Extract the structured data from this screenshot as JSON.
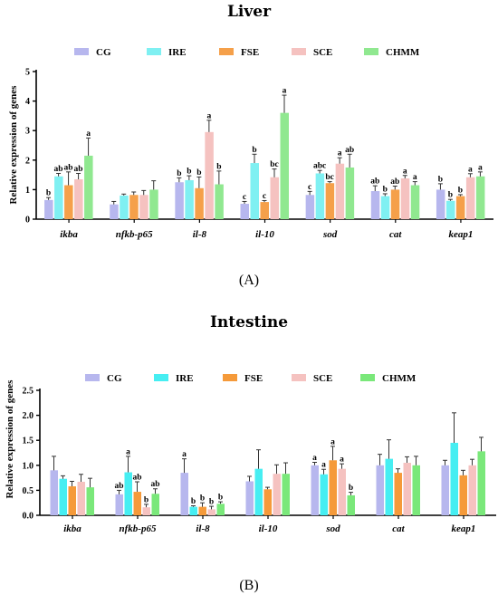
{
  "chart_data": [
    {
      "type": "bar",
      "title": "Liver",
      "panel_label": "(A)",
      "ylabel": "Relative expression of genes",
      "ylim": [
        0,
        5
      ],
      "yticks": [
        "0",
        "1",
        "2",
        "3",
        "4",
        "5"
      ],
      "categories": [
        "ikba",
        "nfkb-p65",
        "il-8",
        "il-10",
        "sod",
        "cat",
        "keap1"
      ],
      "legend_position": "top",
      "series": [
        {
          "name": "CG",
          "color": "#b7b7ee",
          "values": [
            0.65,
            0.5,
            1.25,
            0.52,
            0.82,
            0.95,
            1.0
          ],
          "errors": [
            0.08,
            0.1,
            0.15,
            0.08,
            0.12,
            0.18,
            0.2
          ],
          "labels": [
            "b",
            "",
            "b",
            "c",
            "c",
            "ab",
            "b"
          ]
        },
        {
          "name": "IRE",
          "color": "#7ff0f2",
          "values": [
            1.45,
            0.8,
            1.32,
            1.9,
            1.55,
            0.78,
            0.62
          ],
          "errors": [
            0.1,
            0.05,
            0.15,
            0.3,
            0.1,
            0.08,
            0.05
          ],
          "labels": [
            "ab",
            "",
            "b",
            "b",
            "abc",
            "b",
            "b"
          ]
        },
        {
          "name": "FSE",
          "color": "#f5a04a",
          "values": [
            1.15,
            0.82,
            1.05,
            0.58,
            1.22,
            1.0,
            0.78
          ],
          "errors": [
            0.45,
            0.1,
            0.38,
            0.05,
            0.05,
            0.12,
            0.05
          ],
          "labels": [
            "ab",
            "",
            "b",
            "c",
            "bc",
            "ab",
            "b"
          ]
        },
        {
          "name": "SCE",
          "color": "#f5c2c0",
          "values": [
            1.35,
            0.82,
            2.95,
            1.42,
            1.88,
            1.38,
            1.42
          ],
          "errors": [
            0.2,
            0.15,
            0.4,
            0.28,
            0.2,
            0.1,
            0.12
          ],
          "labels": [
            "ab",
            "",
            "a",
            "bc",
            "a",
            "a",
            "a"
          ]
        },
        {
          "name": "CHMM",
          "color": "#90e890",
          "values": [
            2.15,
            1.0,
            1.18,
            3.6,
            1.75,
            1.15,
            1.45
          ],
          "errors": [
            0.6,
            0.3,
            0.45,
            0.6,
            0.45,
            0.12,
            0.15
          ],
          "labels": [
            "a",
            "",
            "b",
            "a",
            "ab",
            "a",
            "a"
          ]
        }
      ]
    },
    {
      "type": "bar",
      "title": "Intestine",
      "panel_label": "(B)",
      "ylabel": "Relative expression of genes",
      "ylim": [
        0,
        2.5
      ],
      "yticks": [
        "0.0",
        "0.5",
        "1.0",
        "1.5",
        "2.0",
        "2.5"
      ],
      "categories": [
        "ikba",
        "nfkb-p65",
        "il-8",
        "il-10",
        "sod",
        "cat",
        "keap1"
      ],
      "legend_position": "top",
      "series": [
        {
          "name": "CG",
          "color": "#b7b7ee",
          "values": [
            0.9,
            0.42,
            0.85,
            0.68,
            1.0,
            1.0,
            1.0
          ],
          "errors": [
            0.28,
            0.08,
            0.28,
            0.1,
            0.06,
            0.22,
            0.1
          ],
          "labels": [
            "",
            "ab",
            "a",
            "",
            "a",
            "",
            ""
          ]
        },
        {
          "name": "IRE",
          "color": "#46eef2",
          "values": [
            0.73,
            0.86,
            0.17,
            0.93,
            0.82,
            1.13,
            1.45
          ],
          "errors": [
            0.06,
            0.32,
            0.02,
            0.38,
            0.1,
            0.38,
            0.6
          ],
          "labels": [
            "",
            "a",
            "b",
            "",
            "a",
            "",
            ""
          ]
        },
        {
          "name": "FSE",
          "color": "#f59a3a",
          "values": [
            0.58,
            0.47,
            0.17,
            0.52,
            1.1,
            0.85,
            0.8
          ],
          "errors": [
            0.1,
            0.2,
            0.08,
            0.04,
            0.28,
            0.08,
            0.1
          ],
          "labels": [
            "",
            "ab",
            "b",
            "",
            "a",
            "",
            ""
          ]
        },
        {
          "name": "SCE",
          "color": "#f5c2c0",
          "values": [
            0.67,
            0.16,
            0.12,
            0.83,
            0.93,
            1.05,
            1.0
          ],
          "errors": [
            0.15,
            0.06,
            0.06,
            0.18,
            0.1,
            0.12,
            0.12
          ],
          "labels": [
            "",
            "b",
            "b",
            "",
            "a",
            "",
            ""
          ]
        },
        {
          "name": "CHMM",
          "color": "#7ae87a",
          "values": [
            0.56,
            0.43,
            0.23,
            0.83,
            0.4,
            1.0,
            1.28
          ],
          "errors": [
            0.18,
            0.1,
            0.04,
            0.22,
            0.06,
            0.18,
            0.28
          ],
          "labels": [
            "",
            "ab",
            "b",
            "",
            "b",
            "",
            ""
          ]
        }
      ]
    }
  ]
}
